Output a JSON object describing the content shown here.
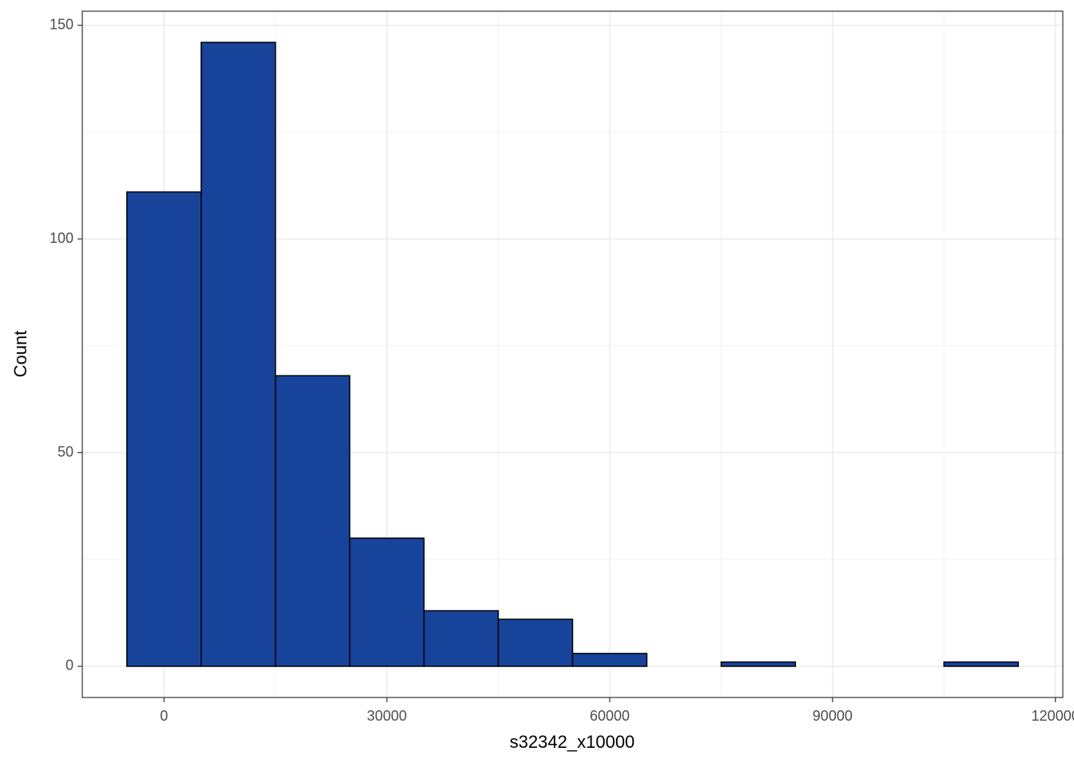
{
  "chart_data": {
    "type": "histogram",
    "xlabel": "s32342_x10000",
    "ylabel": "Count",
    "bins": [
      -5000,
      5000,
      15000,
      25000,
      35000,
      45000,
      55000,
      65000,
      75000,
      85000,
      95000,
      105000,
      115000
    ],
    "counts": [
      111,
      146,
      68,
      30,
      13,
      11,
      3,
      0,
      1,
      0,
      0,
      1
    ],
    "color": "#17439b",
    "edgecolor": "#000000",
    "xlim": [
      -11000,
      121000
    ],
    "xticks": [
      0,
      30000,
      60000,
      90000,
      120000
    ],
    "ylim": [
      -7.3,
      153.3
    ],
    "yticks": [
      0,
      50,
      100,
      150
    ],
    "grid": true
  }
}
